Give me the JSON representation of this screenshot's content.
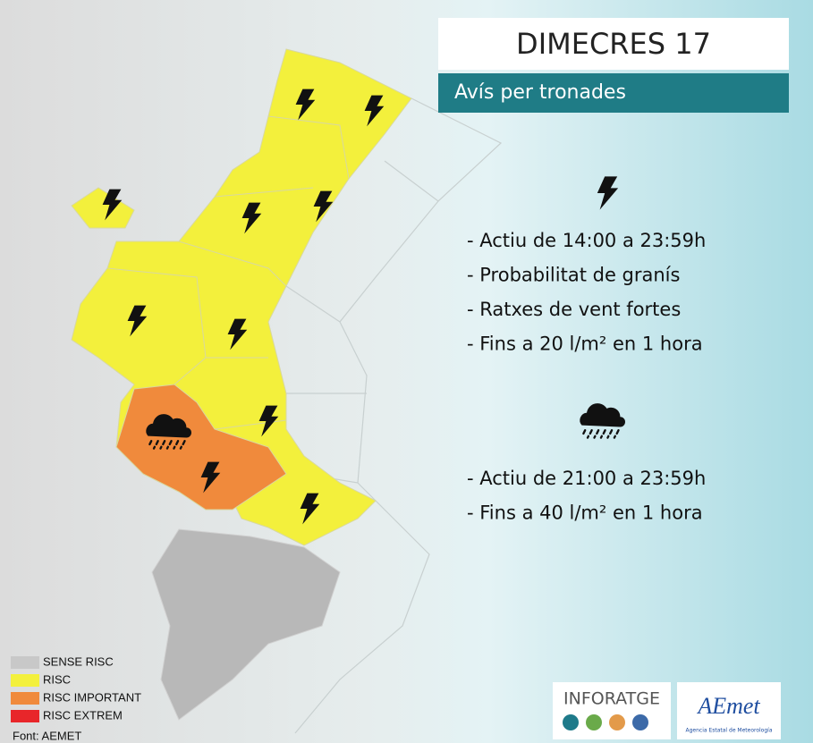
{
  "header": {
    "title": "DIMECRES 17",
    "subtitle": "Avís per tronades"
  },
  "warnings": [
    {
      "items": [
        "- Actiu de 14:00 a 23:59h",
        "- Probabilitat de granís",
        "- Ratxes de vent fortes",
        "- Fins a 20 l/m² en 1 hora"
      ]
    },
    {
      "items": [
        "- Actiu de 21:00 a 23:59h",
        "- Fins a 40 l/m² en 1 hora"
      ]
    }
  ],
  "legend": [
    {
      "label": "SENSE RISC",
      "color": "#c8c8c8"
    },
    {
      "label": "RISC",
      "color": "#f3f03c"
    },
    {
      "label": "RISC IMPORTANT",
      "color": "#f08a3c"
    },
    {
      "label": "RISC EXTREM",
      "color": "#e8262a"
    }
  ],
  "source": "Font: AEMET",
  "logos": {
    "inforatge": "INFORATGE",
    "aemet": "AEmet",
    "aemet_caption": "Agencia Estatal de Meteorología"
  }
}
